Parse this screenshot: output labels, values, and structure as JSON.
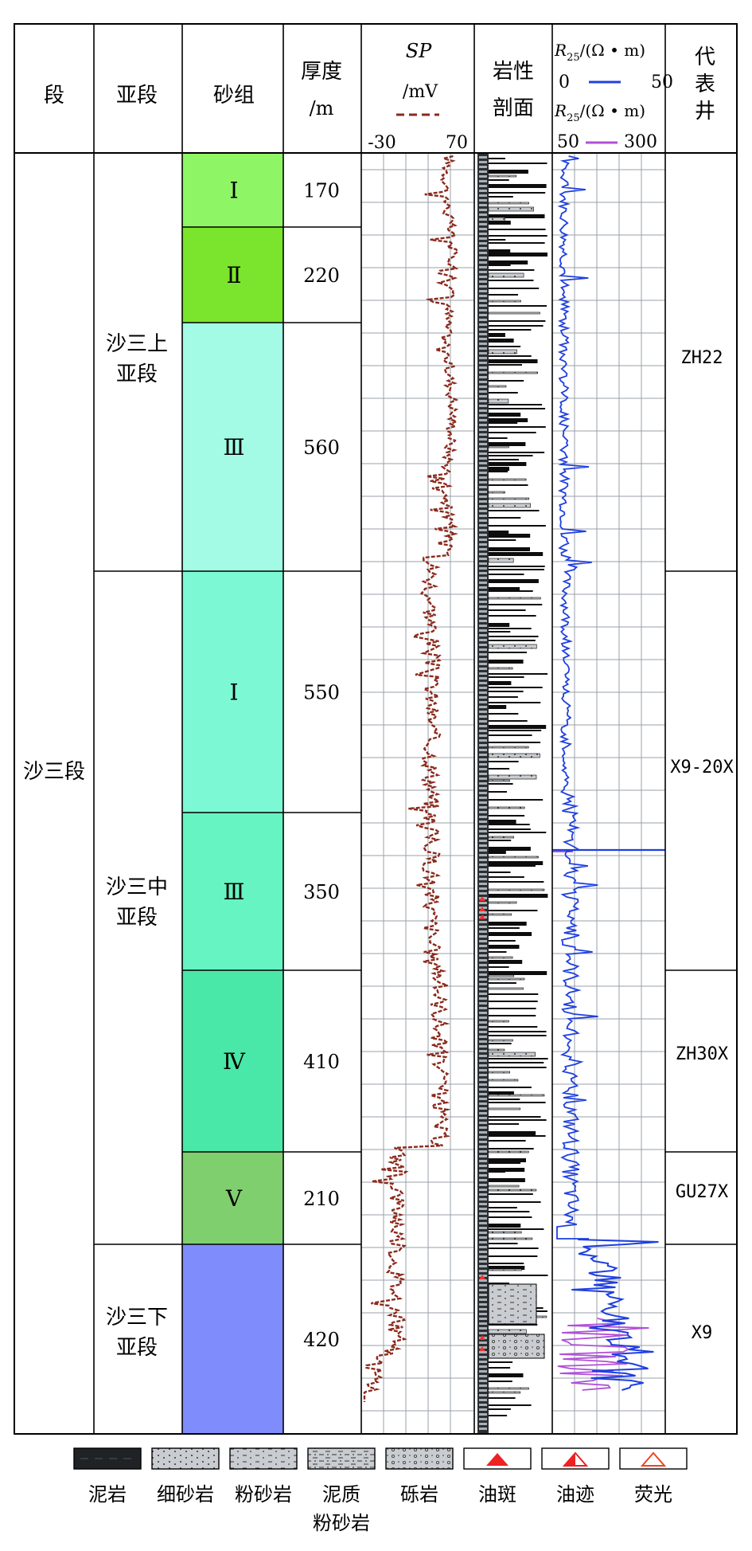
{
  "headers": {
    "duan": "段",
    "yaduan": "亚段",
    "shazu": "砂组",
    "thickness": "厚度",
    "thickness_unit": "/m",
    "sp_title": "SP",
    "sp_unit": "/mV",
    "sp_min": "-30",
    "sp_max": "70",
    "lith_line1": "岩性",
    "lith_line2": "剖面",
    "r25_label": "R",
    "r25_sub": "25",
    "r25_unit": "/(Ω • m)",
    "r25_scale1_min": "0",
    "r25_scale1_max": "50",
    "r25_scale2_min": "50",
    "r25_scale2_max": "300",
    "well_line1": "代",
    "well_line2": "表",
    "well_line3": "井"
  },
  "colors": {
    "sp_curve": "#8b2a1c",
    "r25_curve_1": "#1f3fe0",
    "r25_curve_2": "#b050d8",
    "grid": "#9aa0aa"
  },
  "formation": "沙三段",
  "sub_members": [
    {
      "line1": "沙三上",
      "line2": "亚段"
    },
    {
      "line1": "沙三中",
      "line2": "亚段"
    },
    {
      "line1": "沙三下",
      "line2": "亚段"
    }
  ],
  "sand_groups": [
    {
      "roman": "Ⅰ",
      "thickness": "170",
      "color": "#8ef565"
    },
    {
      "roman": "Ⅱ",
      "thickness": "220",
      "color": "#7ae52c"
    },
    {
      "roman": "Ⅲ",
      "thickness": "560",
      "color": "#a3fbe5"
    },
    {
      "roman": "Ⅰ",
      "thickness": "550",
      "color": "#7cf9d4"
    },
    {
      "roman": "Ⅲ",
      "thickness": "350",
      "color": "#66f4c2"
    },
    {
      "roman": "Ⅳ",
      "thickness": "410",
      "color": "#4ae8a8"
    },
    {
      "roman": "Ⅴ",
      "thickness": "210",
      "color": "#7fcf6e"
    },
    {
      "roman": "",
      "thickness": "420",
      "color": "#7f8cfb"
    }
  ],
  "wells": [
    "ZH22",
    "X9-20X",
    "ZH30X",
    "GU27X",
    "X9"
  ],
  "legend": [
    {
      "label": "泥岩",
      "icon": "mudstone-pattern"
    },
    {
      "label": "细砂岩",
      "icon": "fine-sandstone-pattern"
    },
    {
      "label": "粉砂岩",
      "icon": "siltstone-pattern"
    },
    {
      "label": "泥质",
      "label2": "粉砂岩",
      "icon": "muddy-siltstone-pattern"
    },
    {
      "label": "砾岩",
      "icon": "conglomerate-pattern"
    },
    {
      "label": "油斑",
      "icon": "oil-spot-icon"
    },
    {
      "label": "油迹",
      "icon": "oil-trace-icon"
    },
    {
      "label": "荧光",
      "icon": "fluorescence-icon"
    }
  ]
}
